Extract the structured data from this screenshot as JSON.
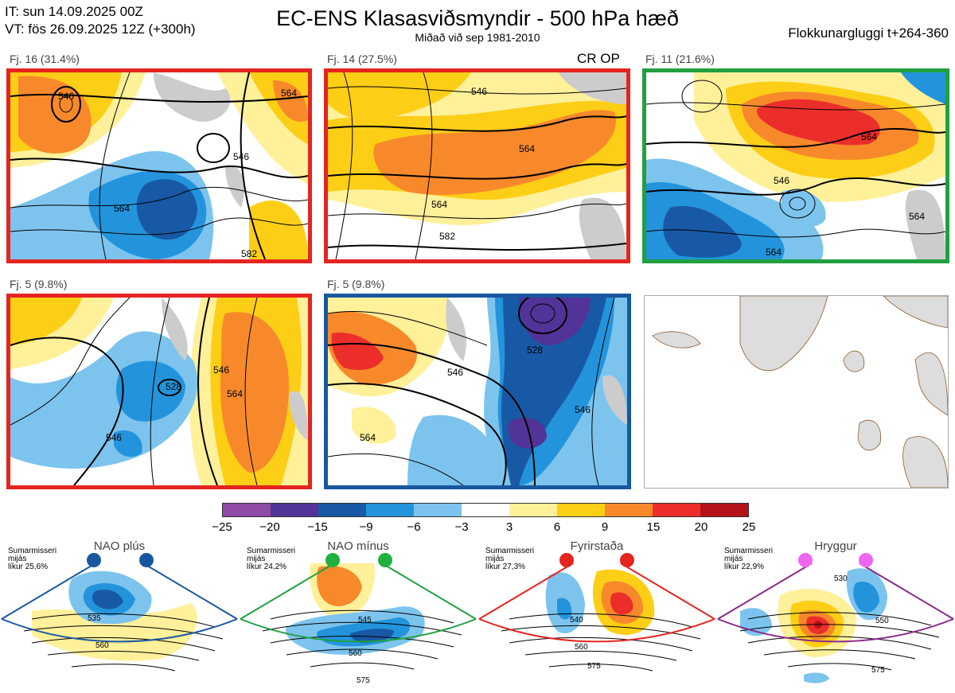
{
  "header": {
    "init_time": "IT: sun 14.09.2025 00Z",
    "valid_time": "VT: fös 26.09.2025 12Z  (+300h)",
    "title": "EC-ENS Klasasviðsmyndir - 500 hPa hæð",
    "subtitle": "Miðað við sep 1981-2010",
    "window": "Flokkunargluggi t+264-360"
  },
  "clusters": [
    {
      "label": "Fj. 16 (31.4%)",
      "border_color": "#e52420",
      "extra": "",
      "contour_labels": [
        "546",
        "564",
        "546",
        "564",
        "582"
      ]
    },
    {
      "label": "Fj. 14 (27.5%)",
      "border_color": "#e52420",
      "extra": "CR OP",
      "contour_labels": [
        "546",
        "564",
        "564",
        "582"
      ]
    },
    {
      "label": "Fj. 11 (21.6%)",
      "border_color": "#20a040",
      "extra": "",
      "contour_labels": [
        "564",
        "546",
        "564",
        "564"
      ]
    },
    {
      "label": "Fj. 5 (9.8%)",
      "border_color": "#e52420",
      "extra": "",
      "contour_labels": [
        "546",
        "528",
        "546",
        "564"
      ]
    },
    {
      "label": "Fj. 5 (9.8%)",
      "border_color": "#1857a0",
      "extra": "",
      "contour_labels": [
        "546",
        "528",
        "546",
        "564"
      ]
    }
  ],
  "colorbar": {
    "ticks": [
      "−25",
      "−20",
      "−15",
      "−9",
      "−6",
      "−3",
      "3",
      "6",
      "9",
      "15",
      "20",
      "25"
    ],
    "colors": [
      "#8e4aa4",
      "#523397",
      "#1859a5",
      "#2394dc",
      "#7cc4ee",
      "#ffffff",
      "#fff09a",
      "#fdce16",
      "#f7892b",
      "#ec2e2b",
      "#b31319"
    ]
  },
  "regimes": [
    {
      "name": "NAO plús",
      "info_lines": [
        "Sumarmisseri",
        "mijás",
        "líkur 25,6%"
      ],
      "border_color": "#1857a0",
      "dot_color": "#1857a0",
      "labels": [
        "535",
        "560"
      ]
    },
    {
      "name": "NAO mínus",
      "info_lines": [
        "Sumarmisseri",
        "mijás",
        "líkur 24,2%"
      ],
      "border_color": "#20a040",
      "dot_color": "#20b040",
      "labels": [
        "545",
        "560",
        "575"
      ]
    },
    {
      "name": "Fyrirstaða",
      "info_lines": [
        "Sumarmisseri",
        "mijás",
        "líkur 27,3%"
      ],
      "border_color": "#e52420",
      "dot_color": "#e52420",
      "labels": [
        "540",
        "560",
        "575"
      ]
    },
    {
      "name": "Hryggur",
      "info_lines": [
        "Sumarmisseri",
        "mijás",
        "líkur 22,9%"
      ],
      "border_color": "#8a2a8a",
      "dot_color": "#ee66ee",
      "labels": [
        "530",
        "550",
        "575"
      ]
    }
  ]
}
